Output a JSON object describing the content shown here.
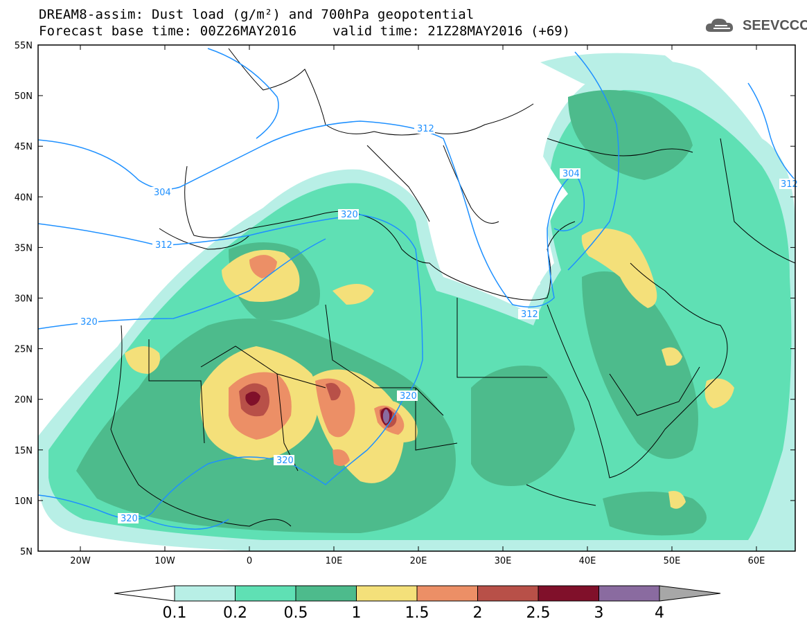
{
  "header": {
    "title_line1": "DREAM8-assim: Dust load (g/m²) and 700hPa geopotential",
    "title_line2_left": "Forecast base time: 00Z26MAY2016",
    "title_line2_right": "valid time: 21Z28MAY2016 (+69)"
  },
  "logo": {
    "text": "SEEVCCC",
    "icon": "cloud-icon"
  },
  "map": {
    "lat_labels": [
      "55N",
      "50N",
      "45N",
      "40N",
      "35N",
      "30N",
      "25N",
      "20N",
      "15N",
      "10N",
      "5N"
    ],
    "lon_labels": [
      "20W",
      "10W",
      "0",
      "10E",
      "20E",
      "30E",
      "40E",
      "50E",
      "60E"
    ],
    "contour_labels": [
      "304",
      "312",
      "320",
      "320",
      "312",
      "304",
      "312",
      "320",
      "320",
      "320",
      "312"
    ],
    "colors": {
      "land_outline": "#000000",
      "geopotential": "#1e90ff"
    }
  },
  "colorbar": {
    "labels": [
      "0.1",
      "0.2",
      "0.5",
      "1",
      "1.5",
      "2",
      "2.5",
      "3",
      "4"
    ],
    "colors": [
      "#b8efe6",
      "#5fe0b4",
      "#4dbb8c",
      "#f4e07a",
      "#ec8f66",
      "#b85048",
      "#80102a",
      "#8a6ba0",
      "#a7a7a7"
    ]
  }
}
